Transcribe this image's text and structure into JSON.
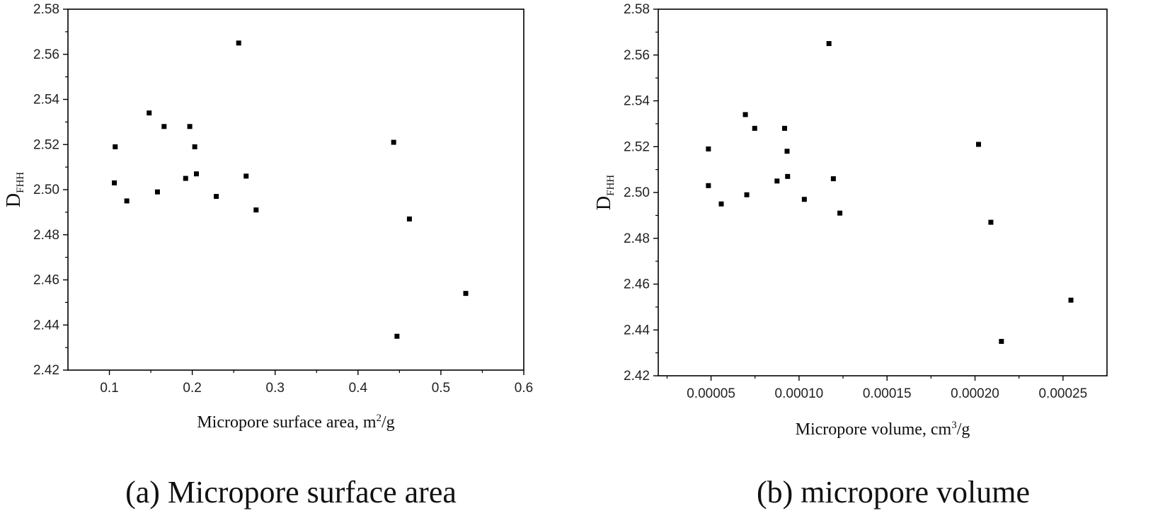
{
  "chart_data": [
    {
      "type": "scatter",
      "xlabel": "Micropore surface area, m",
      "xlabel_sup": "2",
      "xlabel_tail": "/g",
      "ylabel": "D",
      "ylabel_sub": "FHH",
      "caption": "(a) Micropore surface area",
      "xlim": [
        0.05,
        0.6
      ],
      "ylim": [
        2.42,
        2.58
      ],
      "xticks": [
        0.1,
        0.2,
        0.3,
        0.4,
        0.5,
        0.6
      ],
      "xtick_labels": [
        "0.1",
        "0.2",
        "0.3",
        "0.4",
        "0.5",
        "0.6"
      ],
      "yticks": [
        2.42,
        2.44,
        2.46,
        2.48,
        2.5,
        2.52,
        2.54,
        2.56,
        2.58
      ],
      "ytick_labels": [
        "2.42",
        "2.44",
        "2.46",
        "2.48",
        "2.50",
        "2.52",
        "2.54",
        "2.56",
        "2.58"
      ],
      "x": [
        0.256,
        0.148,
        0.166,
        0.197,
        0.107,
        0.203,
        0.443,
        0.106,
        0.205,
        0.265,
        0.192,
        0.158,
        0.229,
        0.121,
        0.277,
        0.462,
        0.53,
        0.447
      ],
      "y": [
        2.565,
        2.534,
        2.528,
        2.528,
        2.519,
        2.519,
        2.521,
        2.503,
        2.507,
        2.506,
        2.505,
        2.499,
        2.497,
        2.495,
        2.491,
        2.487,
        2.454,
        2.435
      ]
    },
    {
      "type": "scatter",
      "xlabel": "Micropore volume, cm",
      "xlabel_sup": "3",
      "xlabel_tail": "/g",
      "ylabel": "D",
      "ylabel_sub": "FHH",
      "caption": "(b) micropore volume",
      "xlim": [
        2e-05,
        0.000275
      ],
      "ylim": [
        2.42,
        2.58
      ],
      "xticks": [
        5e-05,
        0.0001,
        0.00015,
        0.0002,
        0.00025
      ],
      "xtick_labels": [
        "0.00005",
        "0.00010",
        "0.00015",
        "0.00020",
        "0.00025"
      ],
      "yticks": [
        2.42,
        2.44,
        2.46,
        2.48,
        2.5,
        2.52,
        2.54,
        2.56,
        2.58
      ],
      "ytick_labels": [
        "2.42",
        "2.44",
        "2.46",
        "2.48",
        "2.50",
        "2.52",
        "2.54",
        "2.56",
        "2.58"
      ],
      "x": [
        0.000117,
        6.95e-05,
        7.48e-05,
        9.18e-05,
        4.85e-05,
        9.32e-05,
        0.000202,
        4.85e-05,
        9.35e-05,
        0.0001195,
        8.75e-05,
        7.03e-05,
        0.000103,
        5.58e-05,
        0.0001232,
        0.000209,
        0.0002545,
        0.000215
      ],
      "y": [
        2.565,
        2.534,
        2.528,
        2.528,
        2.519,
        2.518,
        2.521,
        2.503,
        2.507,
        2.506,
        2.505,
        2.499,
        2.497,
        2.495,
        2.491,
        2.487,
        2.453,
        2.435
      ]
    }
  ]
}
